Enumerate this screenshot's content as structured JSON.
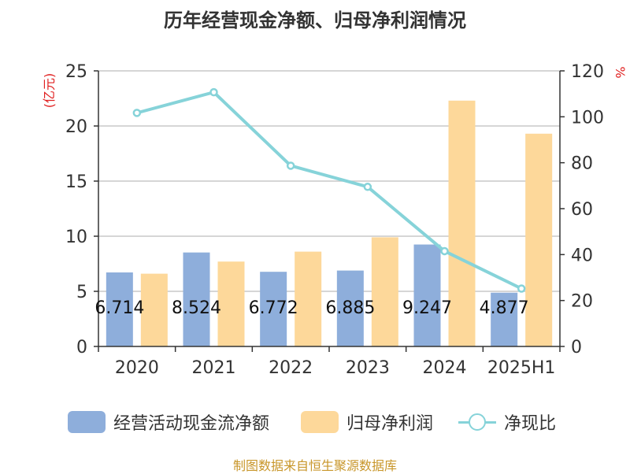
{
  "title": "历年经营现金净额、归母净利润情况",
  "source": "制图数据来自恒生聚源数据库",
  "colors": {
    "cash": "#8eaedb",
    "profit": "#fdd89a",
    "ratio": "#86d3d9",
    "axis_label": "#e02020",
    "grid": "#c8c8c8"
  },
  "legend": [
    {
      "label": "经营活动现金流净额"
    },
    {
      "label": "归母净利润"
    },
    {
      "label": "净现比"
    }
  ],
  "chart_data": {
    "type": "bar",
    "title": "历年经营现金净额、归母净利润情况",
    "categories": [
      "2020",
      "2021",
      "2022",
      "2023",
      "2024",
      "2025H1"
    ],
    "series": [
      {
        "name": "经营活动现金流净额",
        "type": "bar",
        "axis": "left",
        "values": [
          6.714,
          8.524,
          6.772,
          6.885,
          9.247,
          4.877
        ],
        "data_labels": [
          "6.714",
          "8.524",
          "6.772",
          "6.885",
          "9.247",
          "4.877"
        ]
      },
      {
        "name": "归母净利润",
        "type": "bar",
        "axis": "left",
        "values": [
          6.6,
          7.7,
          8.6,
          9.9,
          22.3,
          19.3
        ]
      },
      {
        "name": "净现比",
        "type": "line",
        "axis": "right",
        "values": [
          101.7,
          110.7,
          78.7,
          69.5,
          41.5,
          25.2
        ]
      }
    ],
    "y_left": {
      "label": "(亿元)",
      "ylim": [
        0,
        25
      ],
      "ticks": [
        "0",
        "5",
        "10",
        "15",
        "20",
        "25"
      ]
    },
    "y_right": {
      "label": "%",
      "ylim": [
        0,
        120
      ],
      "ticks": [
        "0",
        "20",
        "40",
        "60",
        "80",
        "100",
        "120"
      ]
    },
    "grid": true,
    "legend_position": "bottom"
  }
}
